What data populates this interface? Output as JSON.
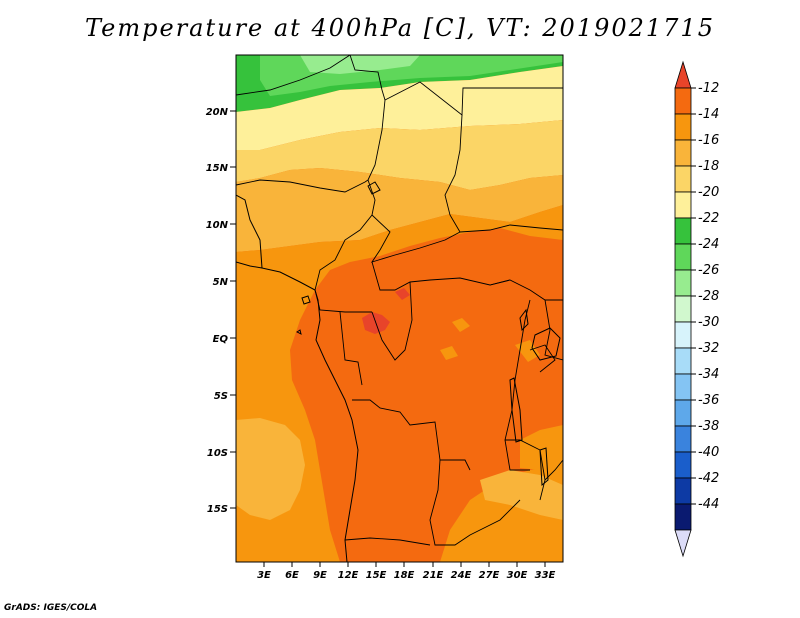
{
  "title": "Temperature at 400hPa [C], VT: 2019021715",
  "credit": "GrADS: IGES/COLA",
  "lat_ticks": [
    "20N",
    "15N",
    "10N",
    "5N",
    "EQ",
    "5S",
    "10S",
    "15S"
  ],
  "lon_ticks": [
    "3E",
    "6E",
    "9E",
    "12E",
    "15E",
    "18E",
    "21E",
    "24E",
    "27E",
    "30E",
    "33E"
  ],
  "colorbar": {
    "labels": [
      "-12",
      "-14",
      "-16",
      "-18",
      "-20",
      "-22",
      "-24",
      "-26",
      "-28",
      "-30",
      "-32",
      "-34",
      "-36",
      "-38",
      "-40",
      "-42",
      "-44"
    ],
    "colors": [
      "#e8442a",
      "#f46a10",
      "#f7960e",
      "#f9b43a",
      "#fbd566",
      "#fef09a",
      "#36c23c",
      "#5fd75a",
      "#97ec8f",
      "#d1f8ce",
      "#d7f3fb",
      "#a8dcf8",
      "#84c4f3",
      "#5ea8ea",
      "#3a83dd",
      "#1a5ecb",
      "#0d3aa4",
      "#0a1a70"
    ],
    "overflow_low_color": "#dcdcf8"
  }
}
